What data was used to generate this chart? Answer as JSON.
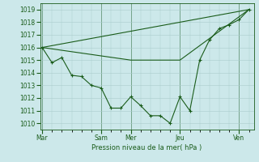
{
  "background_color": "#cce8ea",
  "grid_color": "#aacccc",
  "line_color": "#1a5c1a",
  "marker_color": "#1a5c1a",
  "xlabel": "Pression niveau de la mer( hPa )",
  "ylim": [
    1009.5,
    1019.5
  ],
  "yticks": [
    1010,
    1011,
    1012,
    1013,
    1014,
    1015,
    1016,
    1017,
    1018,
    1019
  ],
  "day_labels": [
    "Mar",
    "Sam",
    "Mer",
    "Jeu",
    "Ven"
  ],
  "day_positions": [
    0,
    6,
    9,
    14,
    20
  ],
  "xlim": [
    -0.2,
    21.5
  ],
  "series1_x": [
    0,
    1,
    2,
    3,
    4,
    5,
    6,
    7,
    8,
    9,
    10,
    11,
    12,
    13,
    14,
    15,
    16,
    17,
    18,
    19,
    20,
    21
  ],
  "series1_y": [
    1016.0,
    1014.8,
    1015.2,
    1013.8,
    1013.7,
    1013.0,
    1012.8,
    1011.2,
    1011.2,
    1012.1,
    1011.4,
    1010.6,
    1010.6,
    1010.0,
    1012.1,
    1011.0,
    1015.0,
    1016.6,
    1017.5,
    1017.8,
    1018.2,
    1019.0
  ],
  "series2_x": [
    0,
    21
  ],
  "series2_y": [
    1016.0,
    1019.0
  ],
  "series3_x": [
    0,
    9,
    14,
    21
  ],
  "series3_y": [
    1016.0,
    1015.0,
    1015.0,
    1019.0
  ]
}
